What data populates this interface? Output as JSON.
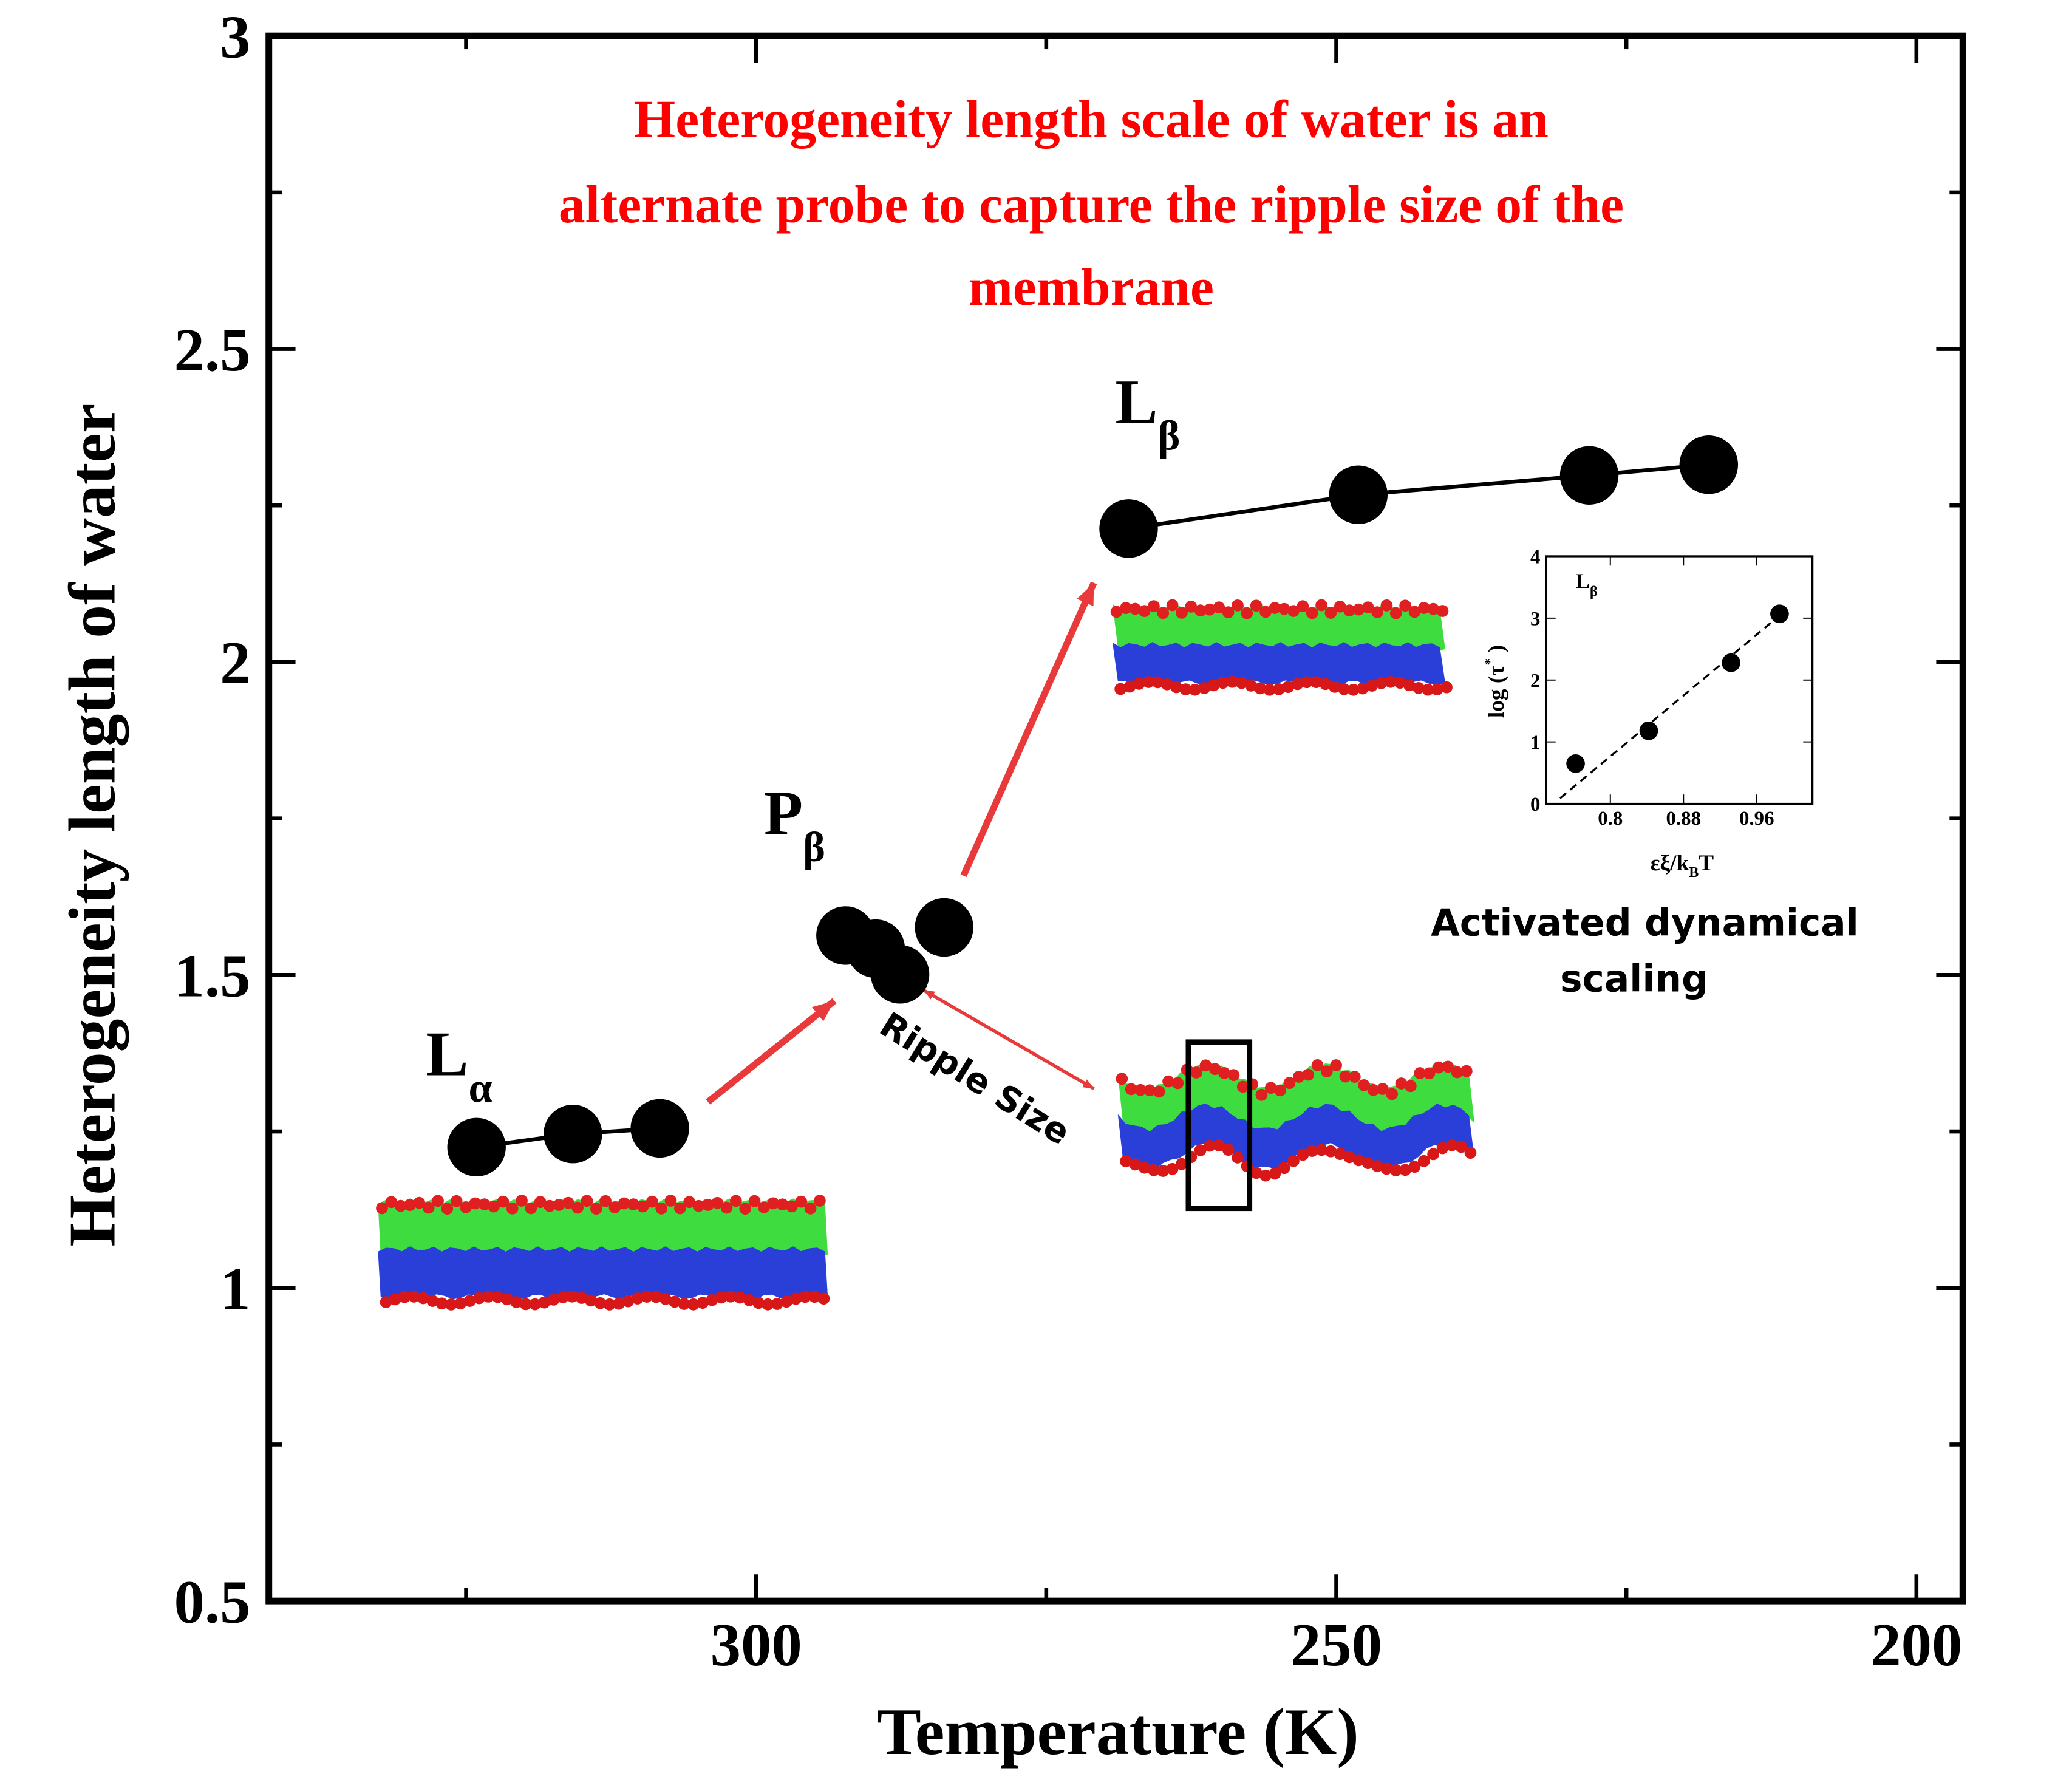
{
  "chart_data": [
    {
      "type": "scatter",
      "title": [
        "Heterogeneity length scale of water is an",
        "alternate probe to capture the ripple size of the",
        "membrane"
      ],
      "xlabel": "Temperature (K)",
      "ylabel": "Heterogeneity length of water",
      "xlim": [
        342,
        196
      ],
      "ylim": [
        0.5,
        3
      ],
      "xticks": [
        300,
        250,
        200
      ],
      "xminor": [
        325,
        275,
        225
      ],
      "yticks": [
        0.5,
        1,
        1.5,
        2,
        2.5,
        3
      ],
      "yminor": [
        0.75,
        1.25,
        1.75,
        2.25,
        2.75
      ],
      "series": [
        {
          "x": [
            324.1,
            315.8,
            308.3
          ],
          "values": [
            1.225,
            1.246,
            1.255
          ],
          "color": "#000000",
          "line": true
        },
        {
          "x": [
            292.3,
            289.7,
            287.6,
            283.8
          ],
          "values": [
            1.563,
            1.542,
            1.501,
            1.576
          ],
          "color": "#000000",
          "line": false
        },
        {
          "x": [
            267.9,
            248.1,
            228.2,
            217.9
          ],
          "values": [
            2.213,
            2.267,
            2.298,
            2.315
          ],
          "color": "#000000",
          "line": true
        }
      ],
      "annotations": [
        {
          "text": "L",
          "sub": "α"
        },
        {
          "text": "P",
          "sub": "β"
        },
        {
          "text": "L",
          "sub": "β"
        }
      ],
      "ripple_label": "Ripple Size",
      "note": [
        "Activated dynamical",
        "scaling"
      ]
    },
    {
      "type": "scatter",
      "xlabel": {
        "text": "εξ/k",
        "sub": "B",
        "after": "T"
      },
      "ylabel": {
        "text": "log (τ",
        "sup": "*",
        "after": " )"
      },
      "xlim": [
        0.73,
        1.021
      ],
      "ylim": [
        0,
        4
      ],
      "xticks": [
        0.8,
        0.88,
        0.96
      ],
      "yticks": [
        0,
        1,
        2,
        3,
        4
      ],
      "series": [
        {
          "x": [
            0.762,
            0.842,
            0.932,
            0.985
          ],
          "values": [
            0.65,
            1.18,
            2.28,
            3.07
          ],
          "color": "#000000",
          "line": false
        },
        {
          "x": [
            0.745,
            0.993
          ],
          "values": [
            0.09,
            3.14
          ],
          "color": "#000000",
          "line": true,
          "dashed": true,
          "markers": false
        }
      ],
      "annotations": [
        {
          "text": "L",
          "sub": "β"
        }
      ]
    }
  ]
}
